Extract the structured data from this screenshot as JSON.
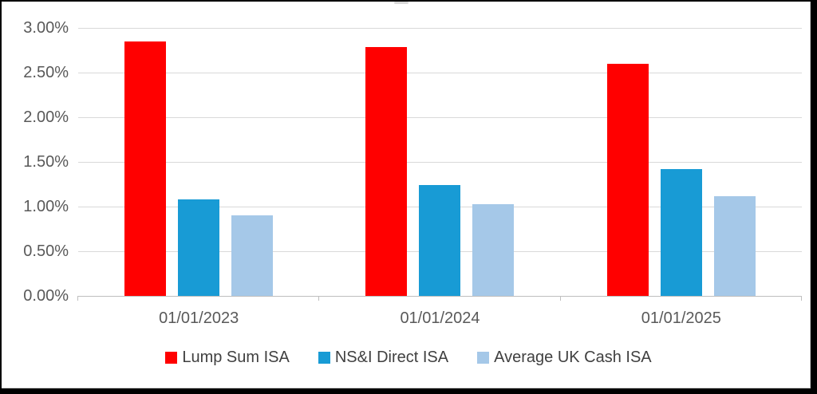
{
  "frame": {
    "border_color": "#000000",
    "canvas_background": "#ffffff"
  },
  "chart_data": {
    "type": "bar",
    "title": "",
    "value_unit": "percent",
    "categories": [
      "01/01/2023",
      "01/01/2024",
      "01/01/2025"
    ],
    "series": [
      {
        "name": "Lump Sum ISA",
        "color": "#ff0000",
        "values": [
          2.85,
          2.79,
          2.6
        ]
      },
      {
        "name": "NS&I Direct ISA",
        "color": "#189bd5",
        "values": [
          1.08,
          1.24,
          1.42
        ]
      },
      {
        "name": "Average UK Cash ISA",
        "color": "#a5c8e8",
        "values": [
          0.9,
          1.03,
          1.12
        ]
      }
    ],
    "y_axis": {
      "min": 0,
      "max": 3,
      "ticks": [
        {
          "value": 0.0,
          "label": "0.00%"
        },
        {
          "value": 0.5,
          "label": "0.50%"
        },
        {
          "value": 1.0,
          "label": "1.00%"
        },
        {
          "value": 1.5,
          "label": "1.50%"
        },
        {
          "value": 2.0,
          "label": "2.00%"
        },
        {
          "value": 2.5,
          "label": "2.50%"
        },
        {
          "value": 3.0,
          "label": "3.00%"
        }
      ]
    },
    "grid": true,
    "legend_position": "bottom"
  },
  "colors": {
    "gridline": "#d9d9d9",
    "axis_line": "#bfbfbf",
    "axis_text": "#595959",
    "legend_text": "#404040"
  }
}
